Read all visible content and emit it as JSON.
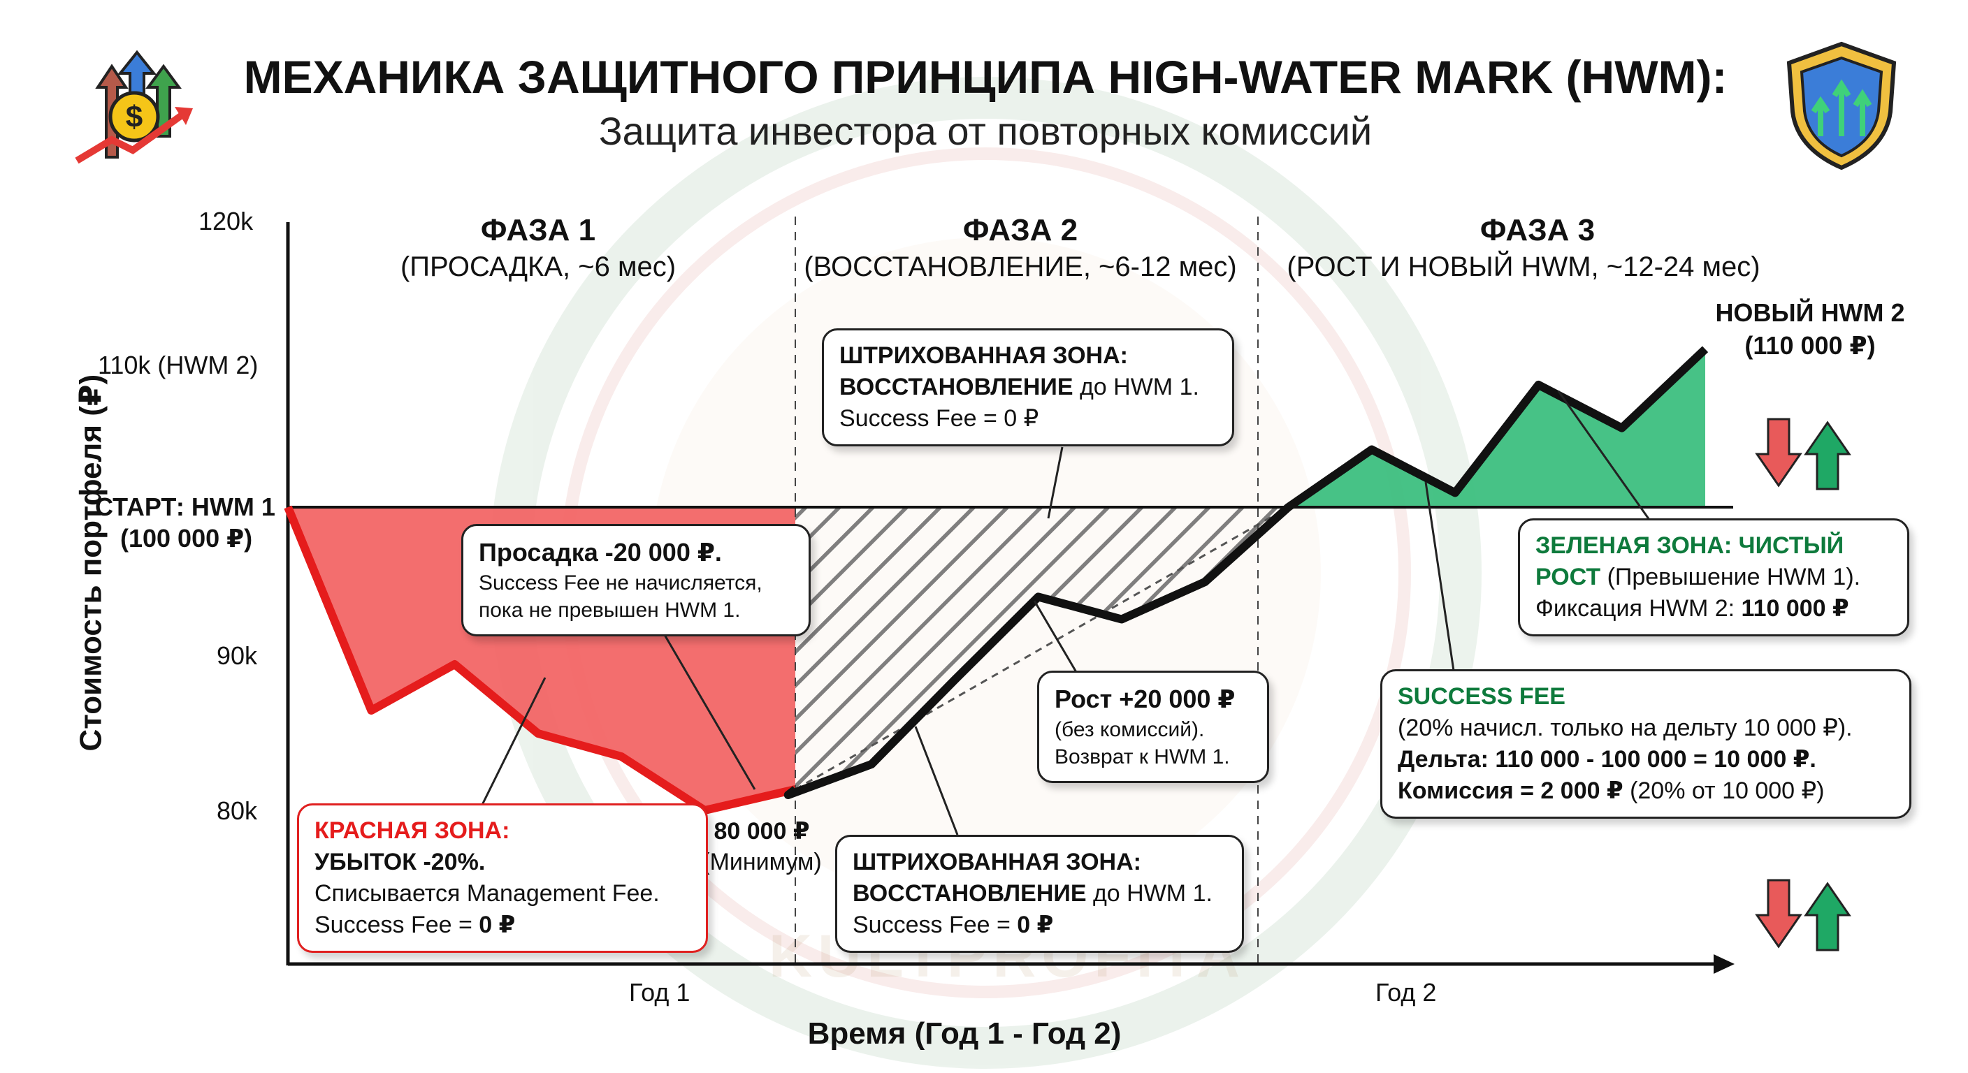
{
  "header": {
    "title": "МЕХАНИКА ЗАЩИТНОГО ПРИНЦИПА HIGH-WATER MARK (HWM):",
    "subtitle": "Защита инвестора от повторных комиссий",
    "left_icon": "money-growth-arrows-icon",
    "right_icon": "shield-growth-icon"
  },
  "watermark": "KULTPROFITA",
  "phases": [
    {
      "title": "ФАЗА 1",
      "subtitle": "(ПРОСАДКА, ~6 мес)"
    },
    {
      "title": "ФАЗА 2",
      "subtitle": "(ВОССТАНОВЛЕНИЕ, ~6-12 мес)"
    },
    {
      "title": "ФАЗА 3",
      "subtitle": "(РОСТ И НОВЫЙ HWM, ~12-24 мес)"
    }
  ],
  "axes": {
    "y_title": "Стоимость портфеля (₽)",
    "x_title": "Время (Год 1 - Год 2)",
    "y_ticks": {
      "t120": "120k",
      "t110": "110k (HWM 2)",
      "start_line1": "СТАРТ: HWM 1",
      "start_line2": "(100 000 ₽)",
      "t90": "90k",
      "t80": "80k"
    },
    "x_ticks": [
      "Год 1",
      "Год 2"
    ]
  },
  "labels": {
    "min_value": "80 000 ₽",
    "min_caption": "(Минимум)",
    "hwm2_line1": "НОВЫЙ HWM 2",
    "hwm2_line2": "(110 000 ₽)"
  },
  "callouts": {
    "drawdown": {
      "title": "Просадка -20 000 ₽.",
      "line2": "Success Fee не начисляется,",
      "line3": "пока не превышен HWM 1."
    },
    "hatched_top": {
      "line1": "ШТРИХОВАННАЯ ЗОНА:",
      "line2_bold": "ВОССТАНОВЛЕНИЕ",
      "line2_rest": " до HWM 1.",
      "line3": "Success Fee = 0 ₽"
    },
    "growth": {
      "title": "Рост +20 000 ₽",
      "line2": "(без комиссий).",
      "line3": "Возврат к HWM 1."
    },
    "red_zone": {
      "line1": "КРАСНАЯ ЗОНА:",
      "line2": "УБЫТОК -20%.",
      "line3": "Списывается Management Fee.",
      "line4_pre": "Success Fee = ",
      "line4_val": "0 ₽"
    },
    "hatched_bottom": {
      "line1": "ШТРИХОВАННАЯ ЗОНА:",
      "line2_bold": "ВОССТАНОВЛЕНИЕ",
      "line2_rest": " до HWM 1.",
      "line3_pre": "Success Fee = ",
      "line3_val": "0 ₽"
    },
    "green_zone": {
      "line1": "ЗЕЛЕНАЯ ЗОНА: ЧИСТЫЙ",
      "line2_green": "РОСТ",
      "line2_rest": " (Превышение HWM 1).",
      "line3_pre": "Фиксация HWM 2: ",
      "line3_val": "110 000 ₽"
    },
    "success_fee": {
      "title": "SUCCESS FEE",
      "line2": "(20% начисл. только на дельту 10 000 ₽).",
      "line3": "Дельта: 110 000 - 100 000 = 10 000 ₽.",
      "line4_bold": "Комиссия = 2 000 ₽",
      "line4_rest": " (20% от 10 000 ₽)"
    }
  },
  "chart_data": {
    "type": "area",
    "x_unit": "time",
    "y_unit": "₽",
    "ylim": [
      75000,
      120000
    ],
    "hwm1": 100000,
    "hwm2": 110000,
    "series": [
      {
        "points": [
          [
            0,
            100000
          ],
          [
            1,
            86500
          ],
          [
            2,
            89500
          ],
          [
            3,
            85000
          ],
          [
            4,
            83500
          ],
          [
            5,
            80000
          ],
          [
            6,
            81000
          ],
          [
            7,
            83000
          ],
          [
            8,
            88500
          ],
          [
            9,
            94000
          ],
          [
            10,
            92500
          ],
          [
            11,
            95000
          ],
          [
            12,
            100000
          ],
          [
            13,
            104000
          ],
          [
            14,
            101000
          ],
          [
            15,
            108500
          ],
          [
            16,
            105500
          ],
          [
            17,
            111000
          ]
        ]
      }
    ],
    "colors": {
      "red_zone": "#f26262",
      "green_zone": "#3dbf7f",
      "line": "#111111",
      "hwm_line": "#111111"
    }
  }
}
